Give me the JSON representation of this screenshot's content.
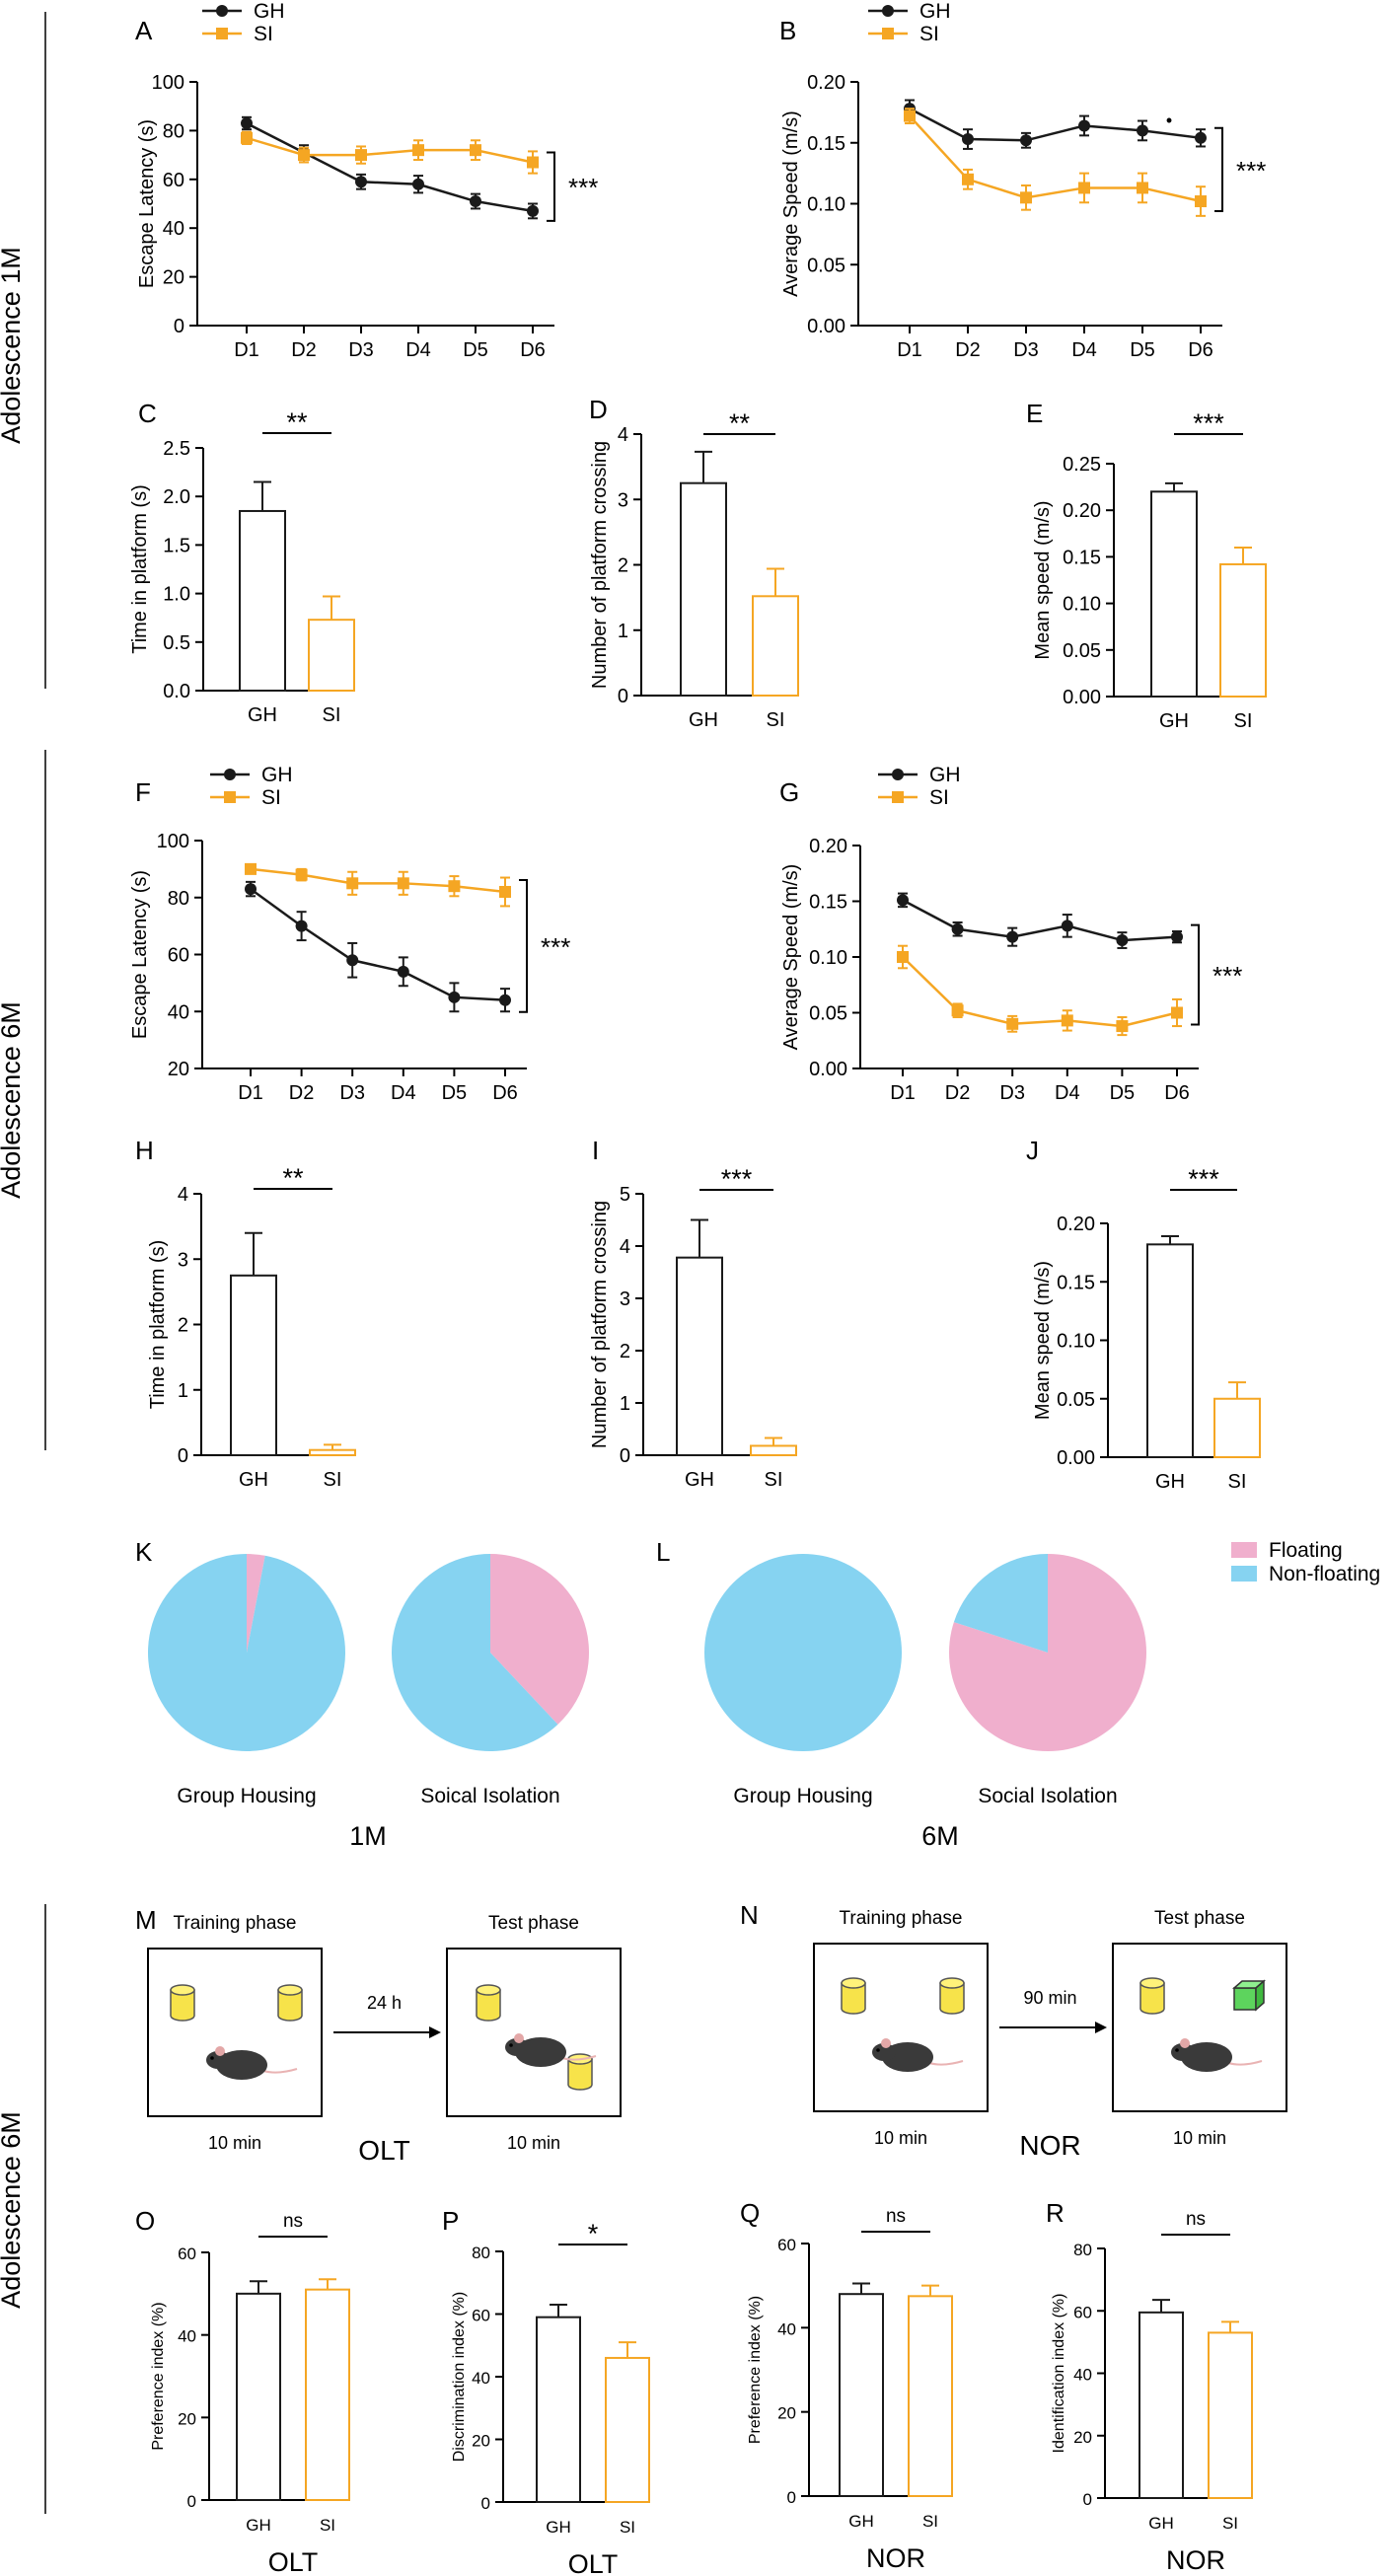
{
  "colors": {
    "gh": "#1a1a1a",
    "si": "#f5a623",
    "floating": "#f0afcd",
    "non_floating": "#86d3f1",
    "mouse": "#3a3a3a",
    "cyl": "#f7e34a",
    "cube": "#5dd45d"
  },
  "sections": {
    "s1": "Adolescence 1M",
    "s2": "Adolescence 6M",
    "s3": "Adolescence 6M"
  },
  "labels": {
    "gh": "GH",
    "si": "SI"
  },
  "pie_legend": {
    "floating": "Floating",
    "non_floating": "Non-floating"
  },
  "schematics": {
    "M": {
      "panel": "M",
      "phase1": "Training phase",
      "phase2": "Test phase",
      "arrow": "24 h",
      "dur1": "10 min",
      "dur2": "10 min",
      "task": "OLT"
    },
    "N": {
      "panel": "N",
      "phase1": "Training phase",
      "phase2": "Test phase",
      "arrow": "90 min",
      "dur1": "10 min",
      "dur2": "10 min",
      "task": "NOR"
    }
  },
  "chart_data": [
    {
      "id": "A",
      "type": "line",
      "title": "A",
      "x": [
        "D1",
        "D2",
        "D3",
        "D4",
        "D5",
        "D6"
      ],
      "series": [
        {
          "name": "GH",
          "values": [
            83,
            71,
            59,
            58,
            51,
            47
          ],
          "errors": [
            2.5,
            3,
            3,
            3.5,
            3,
            3
          ]
        },
        {
          "name": "SI",
          "values": [
            77,
            70,
            70,
            72,
            72,
            67
          ],
          "errors": [
            2.5,
            3,
            3.5,
            4,
            4,
            4.5
          ]
        }
      ],
      "ylabel": "Escape Latency (s)",
      "xlabel": "",
      "ylim": [
        0,
        100
      ],
      "yticks": [
        "0",
        "20",
        "40",
        "60",
        "80",
        "100"
      ],
      "sig": "***"
    },
    {
      "id": "B",
      "type": "line",
      "title": "B",
      "x": [
        "D1",
        "D2",
        "D3",
        "D4",
        "D5",
        "D6"
      ],
      "series": [
        {
          "name": "GH",
          "values": [
            0.178,
            0.153,
            0.152,
            0.164,
            0.16,
            0.154
          ],
          "errors": [
            0.007,
            0.008,
            0.006,
            0.008,
            0.008,
            0.007
          ]
        },
        {
          "name": "SI",
          "values": [
            0.172,
            0.12,
            0.105,
            0.113,
            0.113,
            0.102
          ],
          "errors": [
            0.006,
            0.008,
            0.01,
            0.012,
            0.012,
            0.012
          ]
        }
      ],
      "ylabel": "Average Speed (m/s)",
      "xlabel": "",
      "ylim": [
        0,
        0.2
      ],
      "yticks": [
        "0.00",
        "0.05",
        "0.10",
        "0.15",
        "0.20"
      ],
      "sig": "***",
      "point_mark": "•"
    },
    {
      "id": "C",
      "type": "bar",
      "title": "C",
      "categories": [
        "GH",
        "SI"
      ],
      "values": [
        1.85,
        0.73
      ],
      "errors": [
        0.3,
        0.24
      ],
      "ylabel": "Time in platform (s)",
      "ylim": [
        0,
        2.5
      ],
      "yticks": [
        "0.0",
        "0.5",
        "1.0",
        "1.5",
        "2.0",
        "2.5"
      ],
      "sig": "**"
    },
    {
      "id": "D",
      "type": "bar",
      "title": "D",
      "categories": [
        "GH",
        "SI"
      ],
      "values": [
        3.25,
        1.52
      ],
      "errors": [
        0.48,
        0.42
      ],
      "ylabel": "Number of platform crossing",
      "ylim": [
        0,
        4
      ],
      "yticks": [
        "0",
        "1",
        "2",
        "3",
        "4"
      ],
      "sig": "**"
    },
    {
      "id": "E",
      "type": "bar",
      "title": "E",
      "categories": [
        "GH",
        "SI"
      ],
      "values": [
        0.22,
        0.142
      ],
      "errors": [
        0.009,
        0.018
      ],
      "ylabel": "Mean speed (m/s)",
      "ylim": [
        0,
        0.25
      ],
      "yticks": [
        "0.00",
        "0.05",
        "0.10",
        "0.15",
        "0.20",
        "0.25"
      ],
      "sig": "***"
    },
    {
      "id": "F",
      "type": "line",
      "title": "F",
      "x": [
        "D1",
        "D2",
        "D3",
        "D4",
        "D5",
        "D6"
      ],
      "series": [
        {
          "name": "GH",
          "values": [
            83,
            70,
            58,
            54,
            45,
            44
          ],
          "errors": [
            2.5,
            5,
            6,
            5,
            5,
            4
          ]
        },
        {
          "name": "SI",
          "values": [
            90,
            88,
            85,
            85,
            84,
            82
          ],
          "errors": [
            1.5,
            2,
            4,
            4,
            3.5,
            5
          ]
        }
      ],
      "ylabel": "Escape Latency (s)",
      "xlabel": "",
      "ylim": [
        20,
        100
      ],
      "yticks": [
        "20",
        "40",
        "60",
        "80",
        "100"
      ],
      "sig": "***"
    },
    {
      "id": "G",
      "type": "line",
      "title": "G",
      "x": [
        "D1",
        "D2",
        "D3",
        "D4",
        "D5",
        "D6"
      ],
      "series": [
        {
          "name": "GH",
          "values": [
            0.151,
            0.125,
            0.118,
            0.128,
            0.115,
            0.118
          ],
          "errors": [
            0.006,
            0.006,
            0.008,
            0.01,
            0.007,
            0.005
          ]
        },
        {
          "name": "SI",
          "values": [
            0.1,
            0.052,
            0.04,
            0.043,
            0.038,
            0.05
          ],
          "errors": [
            0.01,
            0.006,
            0.007,
            0.009,
            0.008,
            0.012
          ]
        }
      ],
      "ylabel": "Average Speed (m/s)",
      "xlabel": "",
      "ylim": [
        0,
        0.2
      ],
      "yticks": [
        "0.00",
        "0.05",
        "0.10",
        "0.15",
        "0.20"
      ],
      "sig": "***"
    },
    {
      "id": "H",
      "type": "bar",
      "title": "H",
      "categories": [
        "GH",
        "SI"
      ],
      "values": [
        2.75,
        0.08
      ],
      "errors": [
        0.65,
        0.08
      ],
      "ylabel": "Time in platform (s)",
      "ylim": [
        0,
        4
      ],
      "yticks": [
        "0",
        "1",
        "2",
        "3",
        "4"
      ],
      "sig": "**"
    },
    {
      "id": "I",
      "type": "bar",
      "title": "I",
      "categories": [
        "GH",
        "SI"
      ],
      "values": [
        3.78,
        0.18
      ],
      "errors": [
        0.72,
        0.15
      ],
      "ylabel": "Number of platform crossing",
      "ylim": [
        0,
        5
      ],
      "yticks": [
        "0",
        "1",
        "2",
        "3",
        "4",
        "5"
      ],
      "sig": "***"
    },
    {
      "id": "J",
      "type": "bar",
      "title": "J",
      "categories": [
        "GH",
        "SI"
      ],
      "values": [
        0.182,
        0.05
      ],
      "errors": [
        0.007,
        0.014
      ],
      "ylabel": "Mean speed (m/s)",
      "ylim": [
        0,
        0.2
      ],
      "yticks": [
        "0.00",
        "0.05",
        "0.10",
        "0.15",
        "0.20"
      ],
      "sig": "***"
    },
    {
      "id": "K",
      "type": "pie",
      "title": "K",
      "group": "1M",
      "pies": [
        {
          "label": "Group Housing",
          "slices": [
            {
              "name": "Floating",
              "value": 3
            },
            {
              "name": "Non-floating",
              "value": 97
            }
          ]
        },
        {
          "label": "Soical Isolation",
          "slices": [
            {
              "name": "Floating",
              "value": 38
            },
            {
              "name": "Non-floating",
              "value": 62
            }
          ]
        }
      ]
    },
    {
      "id": "L",
      "type": "pie",
      "title": "L",
      "group": "6M",
      "pies": [
        {
          "label": "Group Housing",
          "slices": [
            {
              "name": "Floating",
              "value": 0
            },
            {
              "name": "Non-floating",
              "value": 100
            }
          ]
        },
        {
          "label": "Social Isolation",
          "slices": [
            {
              "name": "Floating",
              "value": 80
            },
            {
              "name": "Non-floating",
              "value": 20
            }
          ]
        }
      ]
    },
    {
      "id": "O",
      "type": "bar",
      "title": "O",
      "categories": [
        "GH",
        "SI"
      ],
      "values": [
        50,
        51
      ],
      "errors": [
        3,
        2.5
      ],
      "ylabel": "Preference index (%)",
      "ylim": [
        0,
        60
      ],
      "yticks": [
        "0",
        "20",
        "40",
        "60"
      ],
      "sig": "ns",
      "xlabel": "OLT"
    },
    {
      "id": "P",
      "type": "bar",
      "title": "P",
      "categories": [
        "GH",
        "SI"
      ],
      "values": [
        59,
        46
      ],
      "errors": [
        4,
        5
      ],
      "ylabel": "Discrimination index (%)",
      "ylim": [
        0,
        80
      ],
      "yticks": [
        "0",
        "20",
        "40",
        "60",
        "80"
      ],
      "sig": "*",
      "xlabel": "OLT"
    },
    {
      "id": "Q",
      "type": "bar",
      "title": "Q",
      "categories": [
        "GH",
        "SI"
      ],
      "values": [
        48,
        47.5
      ],
      "errors": [
        2.5,
        2.5
      ],
      "ylabel": "Preference index (%)",
      "ylim": [
        0,
        60
      ],
      "yticks": [
        "0",
        "20",
        "40",
        "60"
      ],
      "sig": "ns",
      "xlabel": "NOR"
    },
    {
      "id": "R",
      "type": "bar",
      "title": "R",
      "categories": [
        "GH",
        "SI"
      ],
      "values": [
        59.5,
        53
      ],
      "errors": [
        4,
        3.5
      ],
      "ylabel": "Identification index (%)",
      "ylim": [
        0,
        80
      ],
      "yticks": [
        "0",
        "20",
        "40",
        "60",
        "80"
      ],
      "sig": "ns",
      "xlabel": "NOR"
    }
  ]
}
